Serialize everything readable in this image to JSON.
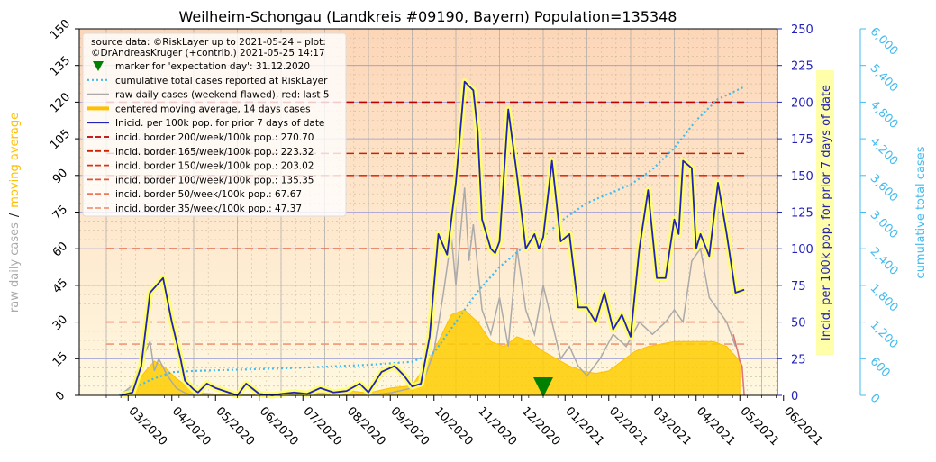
{
  "chart_data": {
    "type": "line",
    "title": "Weilheim-Schongau (Landkreis #09190, Bayern) Population=135348",
    "x_tick_labels": [
      "03/2020",
      "04/2020",
      "05/2020",
      "06/2020",
      "07/2020",
      "08/2020",
      "09/2020",
      "10/2020",
      "11/2020",
      "12/2020",
      "01/2021",
      "02/2021",
      "03/2021",
      "04/2021",
      "05/2021",
      "06/2021"
    ],
    "left_axis": {
      "label_parts": [
        "raw daily cases",
        "/",
        "moving average"
      ],
      "label_colors": [
        "#aaaaaa",
        "#222222",
        "#ffc000"
      ],
      "ylim": [
        0,
        150
      ],
      "ticks": [
        "0",
        "15",
        "30",
        "45",
        "60",
        "75",
        "90",
        "105",
        "120",
        "135",
        "150"
      ]
    },
    "right_axis_1": {
      "label": "Incid. per 100k pop. for prior 7 days of date",
      "color": "#2222bb",
      "ylim": [
        0,
        250
      ],
      "ticks": [
        "0",
        "25",
        "50",
        "75",
        "100",
        "125",
        "150",
        "175",
        "200",
        "225",
        "250"
      ]
    },
    "right_axis_2": {
      "label": "cumulative total cases",
      "color": "#44bbee",
      "ylim": [
        0,
        6000
      ],
      "ticks": [
        "0",
        "600",
        "1,200",
        "1,800",
        "2,400",
        "3,000",
        "3,600",
        "4,200",
        "4,800",
        "5,400",
        "6,000"
      ]
    },
    "legend": {
      "source_line_1": "source data: ©RiskLayer up to 2021-05-24 – plot:",
      "source_line_2": "©DrAndreasKruger (+contrib.) 2021-05-25 14:17",
      "entries": [
        {
          "label": "marker for 'expectation day': 31.12.2020",
          "color": "#008000",
          "kind": "triangle"
        },
        {
          "label": "cumulative total cases reported at RiskLayer",
          "color": "#44bbee",
          "kind": "dotted"
        },
        {
          "label": "raw daily cases (weekend-flawed), red: last 5",
          "color": "#aaaaaa",
          "kind": "line"
        },
        {
          "label": "centered moving average, 14 days cases",
          "color": "#ffc000",
          "kind": "thick"
        },
        {
          "label": "Inicid. per 100k pop. for prior 7 days of date",
          "color": "#2222bb",
          "kind": "line"
        },
        {
          "label": "incid. border 200/week/100k pop.: 270.70",
          "color": "#bb0000",
          "kind": "dash"
        },
        {
          "label": "incid. border 165/week/100k pop.: 223.32",
          "color": "#cc2200",
          "kind": "dash"
        },
        {
          "label": "incid. border 150/week/100k pop.: 203.02",
          "color": "#dd3311",
          "kind": "dash"
        },
        {
          "label": "incid. border 100/week/100k pop.: 135.35",
          "color": "#dd5533",
          "kind": "dash"
        },
        {
          "label": "incid. border   50/week/100k pop.: 67.67",
          "color": "#ee7755",
          "kind": "dash"
        },
        {
          "label": "incid. border   35/week/100k pop.: 47.37",
          "color": "#ee9977",
          "kind": "dash"
        }
      ]
    },
    "borders_incidence": [
      200,
      165,
      150,
      100,
      50,
      35
    ],
    "expectation_day_month_index": 10,
    "incidence_series": {
      "name": "Inicid. per 100k pop. for prior 7 days of date",
      "x_month": [
        0.35,
        0.6,
        0.8,
        1.0,
        1.3,
        1.5,
        1.7,
        1.8,
        2.0,
        2.1,
        2.3,
        2.5,
        2.8,
        3.0,
        3.2,
        3.5,
        3.8,
        4.0,
        4.3,
        4.6,
        4.9,
        5.2,
        5.5,
        5.8,
        6.0,
        6.3,
        6.6,
        6.8,
        7.0,
        7.2,
        7.4,
        7.6,
        7.8,
        8.0,
        8.2,
        8.4,
        8.5,
        8.6,
        8.8,
        8.9,
        9.0,
        9.2,
        9.4,
        9.6,
        9.8,
        9.9,
        10.0,
        10.2,
        10.4,
        10.6,
        10.8,
        11.0,
        11.2,
        11.4,
        11.6,
        11.8,
        12.0,
        12.2,
        12.4,
        12.6,
        12.8,
        13.0,
        13.1,
        13.2,
        13.4,
        13.5,
        13.6,
        13.8,
        14.0,
        14.2,
        14.4,
        14.6
      ],
      "values": [
        0,
        2,
        20,
        70,
        80,
        50,
        25,
        10,
        4,
        2,
        8,
        5,
        2,
        0,
        8,
        1,
        0,
        1,
        2,
        1,
        5,
        2,
        3,
        8,
        2,
        16,
        20,
        14,
        6,
        8,
        40,
        110,
        96,
        145,
        214,
        208,
        180,
        120,
        100,
        97,
        105,
        195,
        150,
        100,
        110,
        100,
        108,
        160,
        105,
        110,
        60,
        60,
        50,
        70,
        45,
        55,
        40,
        100,
        140,
        80,
        80,
        120,
        110,
        160,
        155,
        100,
        110,
        95,
        145,
        110,
        70,
        72
      ]
    },
    "cumulative_series": {
      "name": "cumulative total cases reported at RiskLayer",
      "x_month": [
        0.3,
        1.0,
        1.5,
        2.0,
        3.0,
        4.0,
        5.0,
        6.0,
        7.0,
        7.5,
        8.0,
        8.5,
        9.0,
        9.5,
        10.0,
        10.5,
        11.0,
        11.5,
        12.0,
        12.5,
        13.0,
        13.5,
        14.0,
        14.6
      ],
      "values": [
        0,
        250,
        380,
        400,
        420,
        440,
        470,
        500,
        550,
        700,
        1200,
        1700,
        2100,
        2400,
        2600,
        2900,
        3150,
        3300,
        3450,
        3700,
        4050,
        4500,
        4850,
        5050
      ]
    },
    "moving_average_series": {
      "name": "centered moving average, 14 days cases",
      "x_month": [
        0.3,
        0.6,
        0.9,
        1.1,
        1.3,
        1.6,
        1.9,
        2.2,
        2.5,
        3.0,
        3.5,
        4.0,
        4.5,
        5.0,
        5.5,
        6.0,
        6.5,
        7.0,
        7.3,
        7.6,
        7.9,
        8.2,
        8.5,
        8.8,
        9.1,
        9.4,
        9.7,
        10.0,
        10.3,
        10.6,
        10.9,
        11.2,
        11.5,
        11.8,
        12.1,
        12.4,
        12.7,
        13.0,
        13.3,
        13.6,
        13.9,
        14.2,
        14.5
      ],
      "values": [
        0,
        3,
        10,
        14,
        12,
        7,
        3,
        1,
        0.5,
        0.5,
        0.5,
        1,
        1,
        1,
        2,
        1,
        3,
        4,
        12,
        22,
        33,
        35,
        30,
        22,
        20,
        24,
        22,
        18,
        15,
        12,
        10,
        9,
        10,
        14,
        18,
        20,
        21,
        22,
        22,
        22,
        22,
        20,
        14
      ]
    },
    "raw_daily_series": {
      "name": "raw daily cases (weekend-flawed), red: last 5",
      "x_month": [
        0.3,
        0.6,
        0.9,
        1.0,
        1.1,
        1.2,
        1.4,
        1.6,
        1.8,
        2.0,
        2.5,
        3.0,
        4.0,
        5.0,
        6.0,
        6.5,
        7.0,
        7.3,
        7.5,
        7.7,
        7.9,
        8.0,
        8.2,
        8.3,
        8.4,
        8.6,
        8.8,
        9.0,
        9.2,
        9.4,
        9.6,
        9.8,
        10.0,
        10.2,
        10.4,
        10.6,
        10.8,
        11.0,
        11.3,
        11.6,
        11.9,
        12.2,
        12.5,
        12.8,
        13.0,
        13.2,
        13.4,
        13.6,
        13.8,
        14.0,
        14.2,
        14.4
      ],
      "values": [
        0,
        4,
        18,
        22,
        10,
        15,
        8,
        3,
        1,
        0,
        0,
        0,
        0,
        0,
        0,
        1,
        3,
        8,
        18,
        40,
        65,
        45,
        85,
        55,
        70,
        35,
        25,
        40,
        20,
        60,
        35,
        25,
        45,
        30,
        15,
        20,
        12,
        8,
        15,
        25,
        20,
        30,
        25,
        30,
        35,
        30,
        55,
        60,
        40,
        35,
        30,
        20
      ]
    },
    "last5_series": {
      "x_month": [
        14.35,
        14.45,
        14.5,
        14.55,
        14.6
      ],
      "values": [
        25,
        18,
        14,
        12,
        0
      ]
    }
  }
}
